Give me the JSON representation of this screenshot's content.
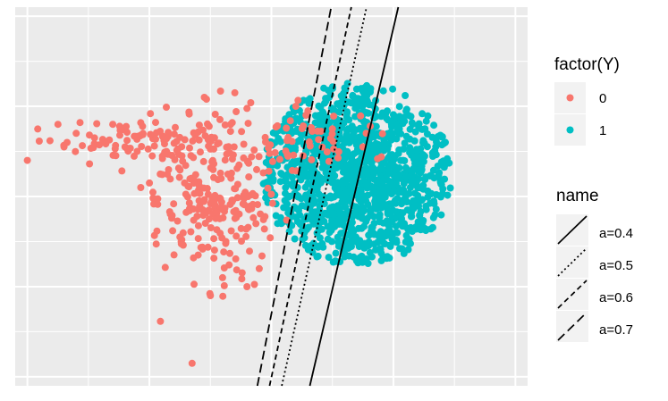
{
  "chart_data": {
    "type": "scatter",
    "title": "",
    "xlabel": "",
    "ylabel": "",
    "xlim": [
      -4.2,
      4.2
    ],
    "ylim": [
      -4.2,
      4.2
    ],
    "grid": true,
    "axis_tick_labels_shown": false,
    "legend_placement": "right",
    "color_legend": {
      "title": "factor(Y)",
      "entries": [
        {
          "label": "0",
          "color": "#F8766D"
        },
        {
          "label": "1",
          "color": "#00BFC4"
        }
      ]
    },
    "line_legend": {
      "title": "name",
      "entries": [
        {
          "label": "a=0.4",
          "dash": "solid"
        },
        {
          "label": "a=0.5",
          "dash": "dotted"
        },
        {
          "label": "a=0.6",
          "dash": "dashed"
        },
        {
          "label": "a=0.7",
          "dash": "longdash"
        }
      ]
    },
    "lines": [
      {
        "name": "a=0.4",
        "dash": "solid",
        "points": [
          [
            0.63,
            -4.2
          ],
          [
            2.08,
            4.2
          ]
        ]
      },
      {
        "name": "a=0.5",
        "dash": "dotted",
        "points": [
          [
            0.17,
            -4.2
          ],
          [
            1.56,
            4.2
          ]
        ]
      },
      {
        "name": "a=0.6",
        "dash": "dashed",
        "points": [
          [
            -0.03,
            -4.2
          ],
          [
            1.31,
            4.2
          ]
        ]
      },
      {
        "name": "a=0.7",
        "dash": "longdash",
        "points": [
          [
            -0.23,
            -4.2
          ],
          [
            0.98,
            4.2
          ]
        ]
      }
    ],
    "clusters": [
      {
        "class": "1",
        "center": [
          1.4,
          0.5
        ],
        "spread": [
          1.05,
          1.25
        ],
        "n": 1800
      },
      {
        "class": "0",
        "center": [
          -0.9,
          0.0
        ],
        "spread": [
          0.45,
          0.9
        ],
        "n": 230
      },
      {
        "class": "0",
        "center": [
          -1.8,
          1.3
        ],
        "spread": [
          0.9,
          0.25
        ],
        "n": 110
      },
      {
        "class": "0",
        "center": [
          0.8,
          1.3
        ],
        "spread": [
          0.55,
          0.35
        ],
        "n": 40
      }
    ],
    "points_class_0": [
      [
        -4.0,
        0.8
      ],
      [
        -1.3,
        -3.7
      ],
      [
        -3.2,
        1.4
      ],
      [
        -2.6,
        1.6
      ],
      [
        -2.9,
        1.3
      ],
      [
        -3.5,
        1.6
      ],
      [
        -3.4,
        1.1
      ],
      [
        -2.4,
        1.1
      ],
      [
        -2.0,
        0.3
      ],
      [
        -2.2,
        1.0
      ],
      [
        -1.0,
        -2.2
      ],
      [
        -0.8,
        -1.8
      ],
      [
        -0.2,
        -1.6
      ],
      [
        -0.4,
        -2.0
      ],
      [
        -1.5,
        -0.9
      ],
      [
        -1.2,
        -1.3
      ],
      [
        1.5,
        1.1
      ],
      [
        1.0,
        1.5
      ],
      [
        0.6,
        1.9
      ],
      [
        0.4,
        2.0
      ],
      [
        -1.1,
        2.2
      ],
      [
        -0.6,
        2.3
      ]
    ]
  }
}
